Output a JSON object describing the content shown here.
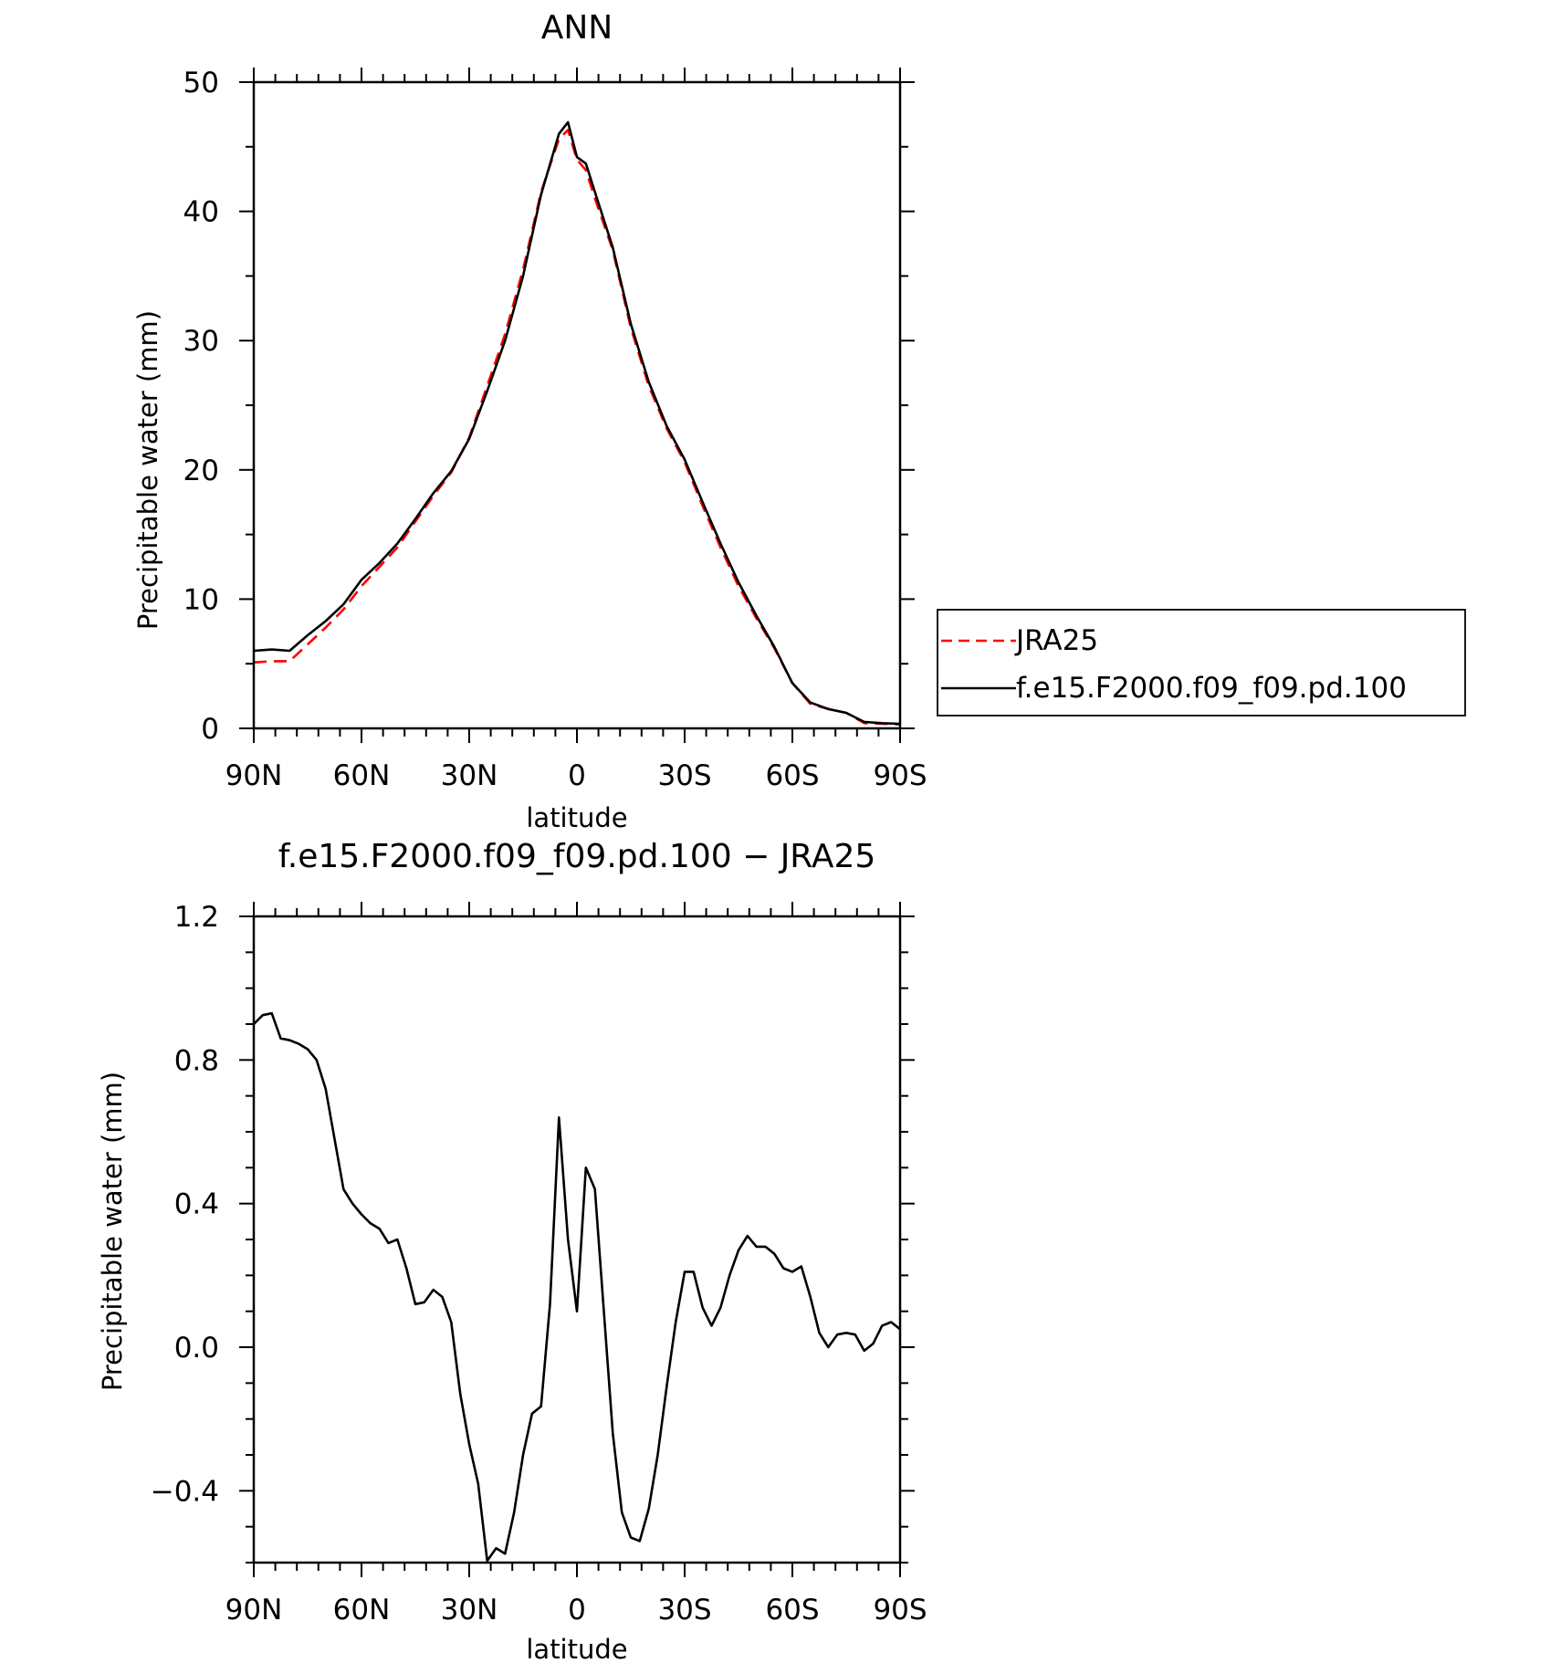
{
  "chart_data": [
    {
      "type": "line",
      "title": "ANN",
      "xlabel": "latitude",
      "ylabel": "Precipitable water (mm)",
      "xlim": [
        90,
        -90
      ],
      "ylim": [
        0,
        50
      ],
      "xticks": [
        90,
        60,
        30,
        0,
        -30,
        -60,
        -90
      ],
      "xtick_labels": [
        "90N",
        "60N",
        "30N",
        "0",
        "30S",
        "60S",
        "90S"
      ],
      "yticks": [
        0,
        10,
        20,
        30,
        40,
        50
      ],
      "ytick_labels": [
        "0",
        "10",
        "20",
        "30",
        "40",
        "50"
      ],
      "x": [
        90,
        85,
        80,
        75,
        70,
        65,
        60,
        55,
        50,
        45,
        40,
        35,
        30,
        25,
        20,
        15,
        10,
        5,
        2.5,
        0,
        -2.5,
        -5,
        -10,
        -15,
        -20,
        -25,
        -30,
        -35,
        -40,
        -45,
        -50,
        -55,
        -60,
        -65,
        -70,
        -75,
        -80,
        -85,
        -90
      ],
      "series": [
        {
          "name": "JRA25",
          "color": "#ff0000",
          "dash": "dashed",
          "values": [
            5.1,
            5.2,
            5.2,
            6.5,
            7.8,
            9.2,
            11.0,
            12.5,
            14.0,
            16.0,
            18.0,
            19.8,
            22.5,
            26.5,
            30.5,
            35.5,
            41.5,
            45.6,
            46.3,
            44.0,
            43.2,
            41.0,
            37.0,
            31.0,
            26.5,
            23.2,
            20.6,
            17.2,
            14.0,
            11.0,
            8.5,
            6.2,
            3.5,
            1.9,
            1.5,
            1.2,
            0.4,
            0.35,
            0.3
          ]
        },
        {
          "name": "f.e15.F2000.f09_f09.pd.100",
          "color": "#000000",
          "dash": "solid",
          "values": [
            6.0,
            6.1,
            6.0,
            7.2,
            8.3,
            9.6,
            11.5,
            12.8,
            14.3,
            16.2,
            18.2,
            19.9,
            22.4,
            26.1,
            30.0,
            35.0,
            41.3,
            46.0,
            46.9,
            44.2,
            43.7,
            41.5,
            37.2,
            31.3,
            26.8,
            23.4,
            20.8,
            17.5,
            14.3,
            11.3,
            8.7,
            6.3,
            3.5,
            2.0,
            1.5,
            1.2,
            0.5,
            0.4,
            0.35
          ]
        }
      ],
      "legend": {
        "placement": "right",
        "entries": [
          {
            "label": "JRA25",
            "color": "#ff0000",
            "dash": "dashed"
          },
          {
            "label": "f.e15.F2000.f09_f09.pd.100",
            "color": "#000000",
            "dash": "solid"
          }
        ]
      }
    },
    {
      "type": "line",
      "title": "f.e15.F2000.f09_f09.pd.100 − JRA25",
      "xlabel": "latitude",
      "ylabel": "Precipitable water (mm)",
      "xlim": [
        90,
        -90
      ],
      "ylim": [
        -0.6,
        1.2
      ],
      "xticks": [
        90,
        60,
        30,
        0,
        -30,
        -60,
        -90
      ],
      "xtick_labels": [
        "90N",
        "60N",
        "30N",
        "0",
        "30S",
        "60S",
        "90S"
      ],
      "yticks": [
        -0.4,
        0.0,
        0.4,
        0.8,
        1.2
      ],
      "ytick_labels": [
        "−0.4",
        "0.0",
        "0.4",
        "0.8",
        "1.2"
      ],
      "series": [
        {
          "name": "",
          "color": "#000000",
          "dash": "solid",
          "x": [
            90,
            87.5,
            85,
            82.5,
            80,
            77.5,
            75,
            72.5,
            70,
            67.5,
            65,
            62.5,
            60,
            57.5,
            55,
            52.5,
            50,
            47.5,
            45,
            42.5,
            40,
            37.5,
            35,
            32.5,
            30,
            27.5,
            25,
            22.5,
            20,
            17.5,
            15,
            12.5,
            10,
            7.5,
            5,
            2.5,
            0,
            -2.5,
            -5,
            -7.5,
            -10,
            -12.5,
            -15,
            -17.5,
            -20,
            -22.5,
            -25,
            -27.5,
            -30,
            -32.5,
            -35,
            -37.5,
            -40,
            -42.5,
            -45,
            -47.5,
            -50,
            -52.5,
            -55,
            -57.5,
            -60,
            -62.5,
            -65,
            -67.5,
            -70,
            -72.5,
            -75,
            -77.5,
            -80,
            -82.5,
            -85,
            -87.5,
            -90
          ],
          "values": [
            0.9,
            0.925,
            0.93,
            0.86,
            0.855,
            0.845,
            0.83,
            0.8,
            0.72,
            0.58,
            0.44,
            0.4,
            0.37,
            0.345,
            0.33,
            0.29,
            0.3,
            0.22,
            0.12,
            0.125,
            0.16,
            0.14,
            0.07,
            -0.13,
            -0.27,
            -0.38,
            -0.595,
            -0.56,
            -0.575,
            -0.46,
            -0.3,
            -0.185,
            -0.165,
            0.12,
            0.64,
            0.3,
            0.1,
            0.5,
            0.44,
            0.1,
            -0.24,
            -0.46,
            -0.53,
            -0.54,
            -0.45,
            -0.3,
            -0.11,
            0.07,
            0.21,
            0.21,
            0.11,
            0.06,
            0.11,
            0.2,
            0.27,
            0.31,
            0.28,
            0.28,
            0.26,
            0.22,
            0.21,
            0.225,
            0.14,
            0.04,
            0.0,
            0.035,
            0.04,
            0.035,
            -0.01,
            0.01,
            0.06,
            0.07,
            0.05
          ]
        }
      ]
    }
  ]
}
